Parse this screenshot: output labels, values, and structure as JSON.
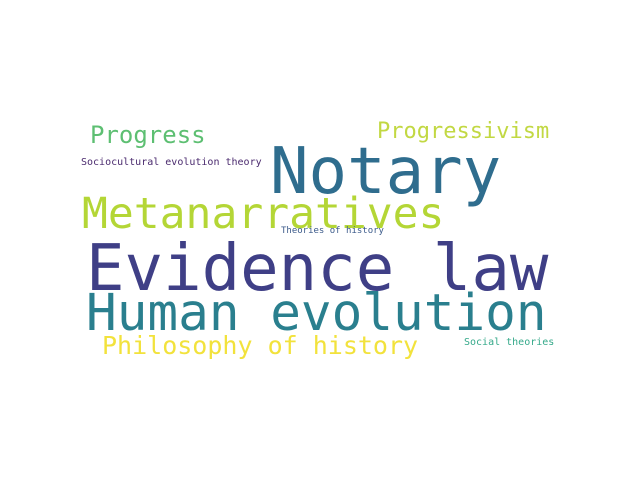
{
  "word_cloud": {
    "words": [
      {
        "text": "Notary",
        "color": "#2f6d8e"
      },
      {
        "text": "Progress",
        "color": "#5dbf72"
      },
      {
        "text": "Progressivism",
        "color": "#c2d843"
      },
      {
        "text": "Sociocultural evolution theory",
        "color": "#4a2a6e"
      },
      {
        "text": "Metanarratives",
        "color": "#b4d636"
      },
      {
        "text": "Theories of history",
        "color": "#3b5a8a"
      },
      {
        "text": "Evidence law",
        "color": "#3f3f86"
      },
      {
        "text": "Human evolution",
        "color": "#2a7f8e"
      },
      {
        "text": "Philosophy of history",
        "color": "#f2e23c"
      },
      {
        "text": "Social theories",
        "color": "#35a98a"
      }
    ]
  }
}
